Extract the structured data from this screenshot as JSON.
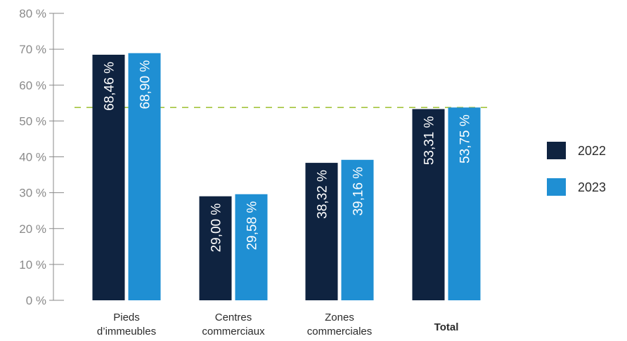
{
  "chart_data": {
    "type": "bar",
    "categories": [
      "Pieds\nd’immeubles",
      "Centres\ncommerciaux",
      "Zones\ncommerciales",
      "Total"
    ],
    "series": [
      {
        "name": "2022",
        "values": [
          68.46,
          29.0,
          38.32,
          53.31
        ],
        "labels": [
          "68,46 %",
          "29,00 %",
          "38,32 %",
          "53,31 %"
        ],
        "color": "#0f2340"
      },
      {
        "name": "2023",
        "values": [
          68.9,
          29.58,
          39.16,
          53.75
        ],
        "labels": [
          "68,90 %",
          "29,58 %",
          "39,16 %",
          "53,75 %"
        ],
        "color": "#1f8fd3"
      }
    ],
    "y_ticks": [
      "0 %",
      "10 %",
      "20 %",
      "30 %",
      "40 %",
      "50 %",
      "60 %",
      "70 %",
      "80 %"
    ],
    "ylim": [
      0,
      80
    ],
    "reference_line": {
      "value": 53.75,
      "color": "#a3c43d",
      "style": "dashed"
    },
    "bold_categories": [
      "Total"
    ],
    "legend_position": "right",
    "title": "",
    "xlabel": "",
    "ylabel": "",
    "grid": false
  }
}
